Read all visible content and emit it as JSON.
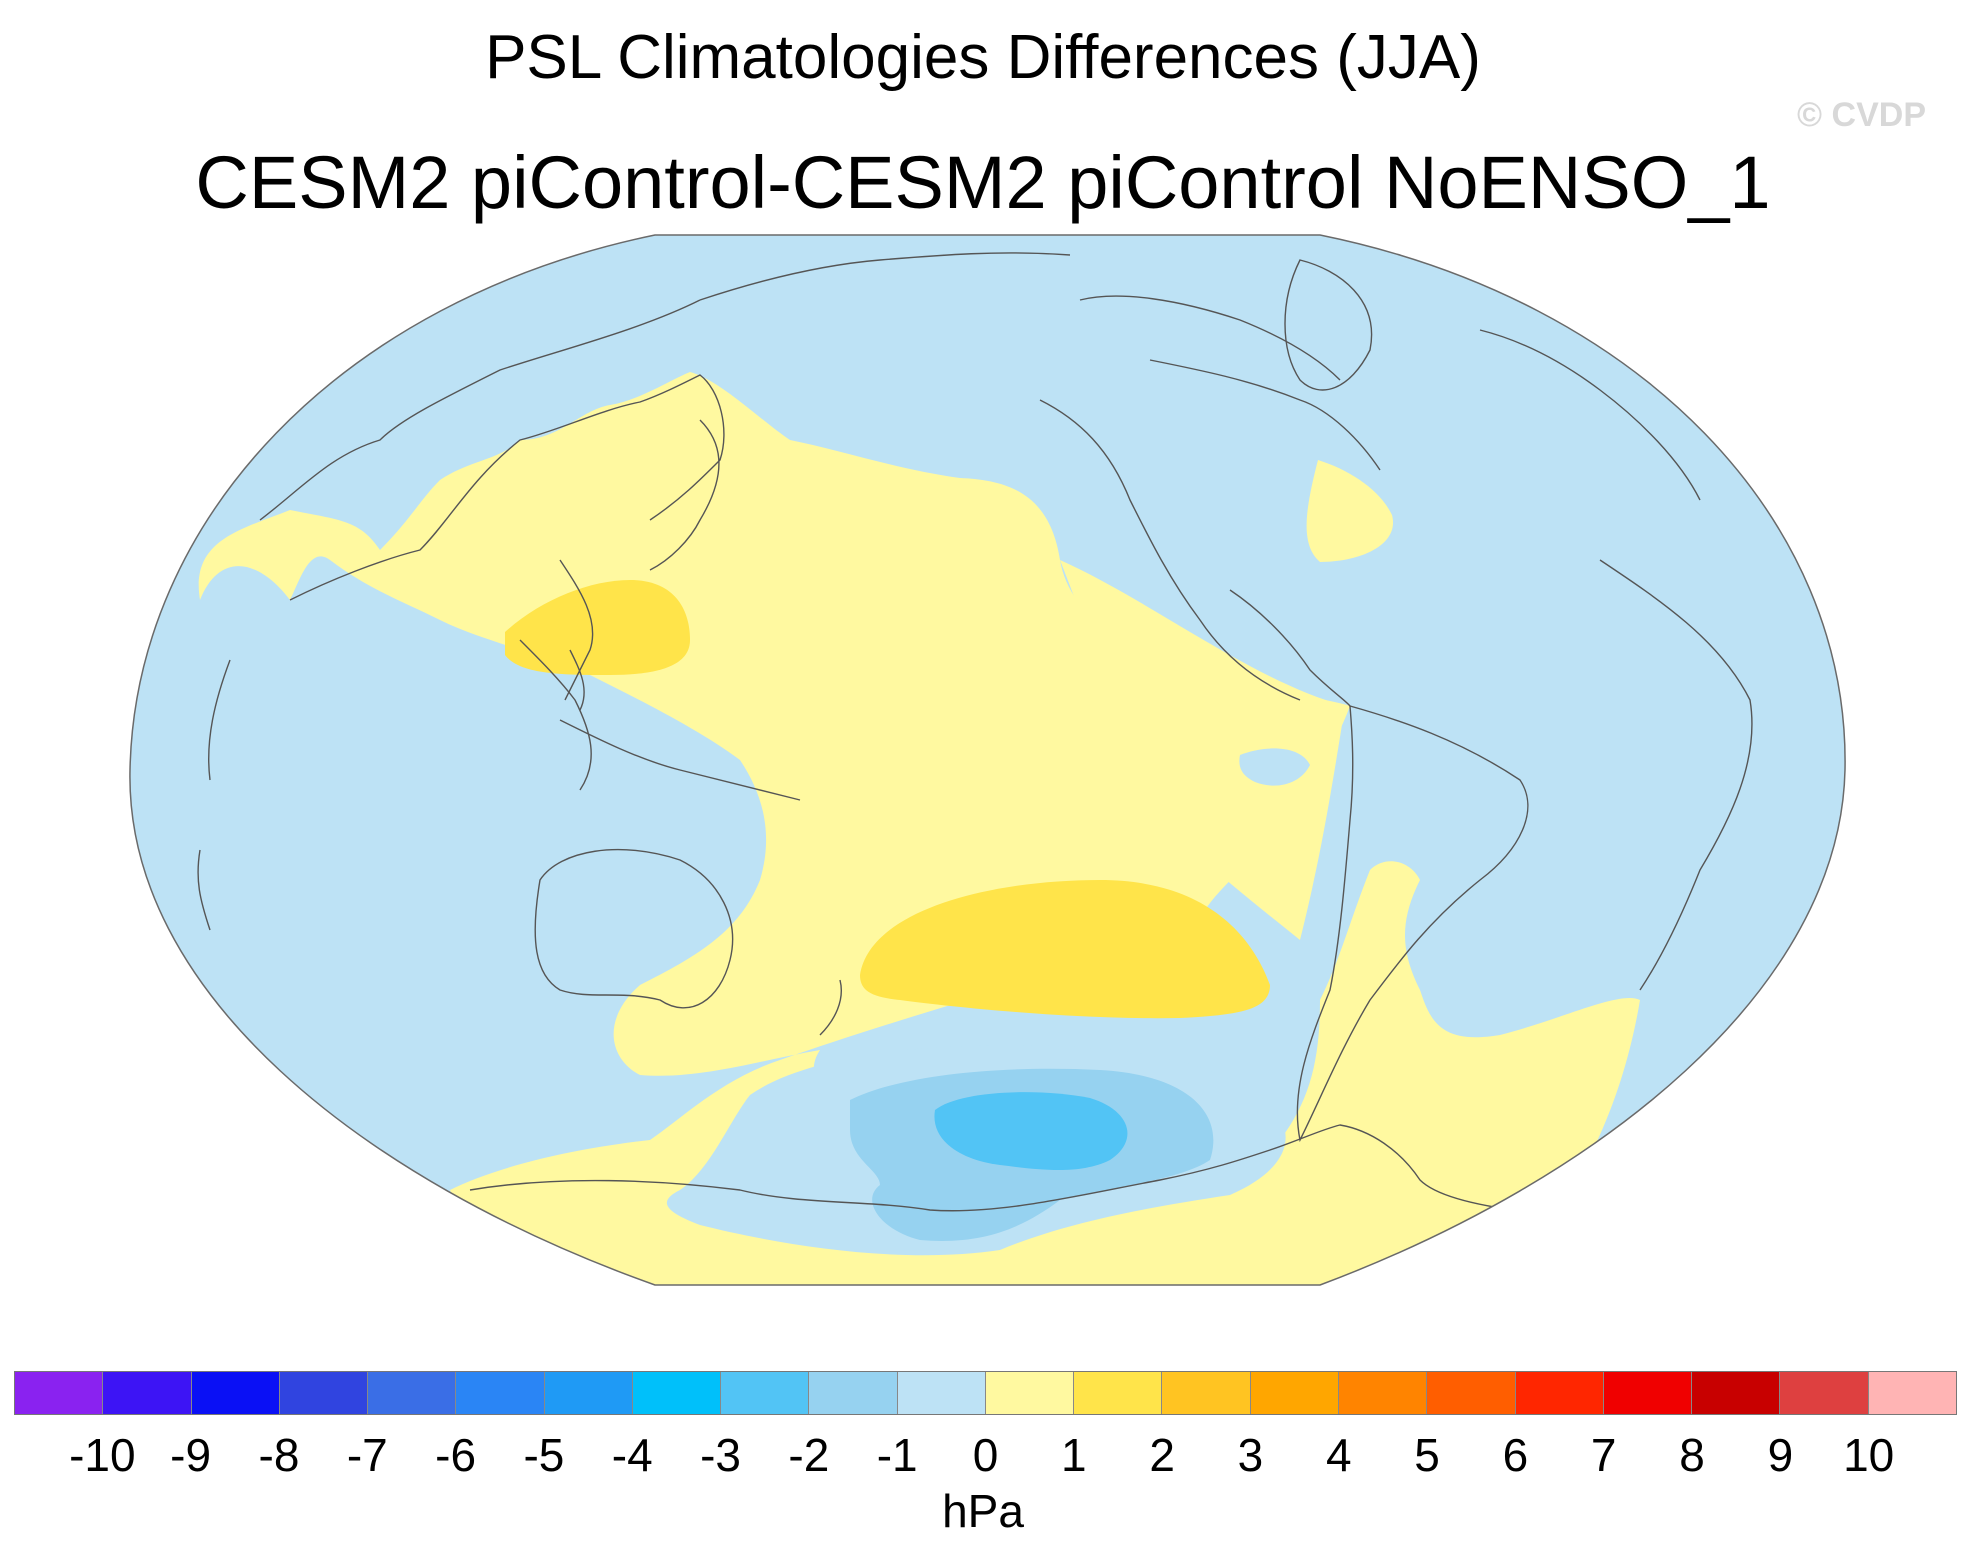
{
  "title_line1": "PSL Climatologies Differences (JJA)",
  "title_line2": "CESM2 piControl-CESM2 piControl NoENSO_1",
  "copyright": "© CVDP",
  "colorbar": {
    "units": "hPa",
    "labels": [
      "-10",
      "-9",
      "-8",
      "-7",
      "-6",
      "-5",
      "-4",
      "-3",
      "-2",
      "-1",
      "0",
      "1",
      "2",
      "3",
      "4",
      "5",
      "6",
      "7",
      "8",
      "9",
      "10"
    ],
    "colors": [
      "#8a22f0",
      "#3d14f5",
      "#0a10f5",
      "#3044e0",
      "#3a6ee6",
      "#2a85f5",
      "#1f9af5",
      "#00c0fa",
      "#52c4f5",
      "#96d2f0",
      "#bde2f5",
      "#fff9a0",
      "#ffe44a",
      "#ffc422",
      "#ffa600",
      "#ff8400",
      "#ff5e00",
      "#ff2600",
      "#f00000",
      "#c80000",
      "#de4040",
      "#ffb4b4"
    ]
  },
  "map_fields": {
    "base_color": "#bde2f5",
    "pos1_color": "#fff9a0",
    "pos2_color": "#ffe44a",
    "neg2_color": "#96d2f0",
    "neg3_color": "#52c4f5",
    "coast_color": "#555555"
  }
}
